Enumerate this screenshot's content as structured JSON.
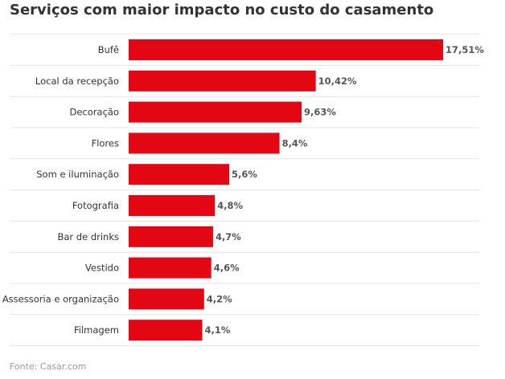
{
  "header": {
    "title": "Serviços com maior impacto no custo do casamento"
  },
  "footer": {
    "source": "Fonte: Casar.com"
  },
  "colors": {
    "bar": "#e30613",
    "gridline": "#e6e6e6",
    "text": "#333333"
  },
  "chart_data": {
    "type": "bar",
    "orientation": "horizontal",
    "title": "Serviços com maior impacto no custo do casamento",
    "categories": [
      "Bufê",
      "Local da recepção",
      "Decoração",
      "Flores",
      "Som e iluminação",
      "Fotografia",
      "Bar de drinks",
      "Vestido",
      "Assessoria e organização",
      "Filmagem"
    ],
    "values": [
      17.51,
      10.42,
      9.63,
      8.4,
      5.6,
      4.8,
      4.7,
      4.6,
      4.2,
      4.1
    ],
    "value_labels": [
      "17,51%",
      "10,42%",
      "9,63%",
      "8,4%",
      "5,6%",
      "4,8%",
      "4,7%",
      "4,6%",
      "4,2%",
      "4,1%"
    ],
    "unit": "%",
    "xlim": [
      0,
      17.51
    ],
    "grid": true,
    "legend": "none"
  }
}
